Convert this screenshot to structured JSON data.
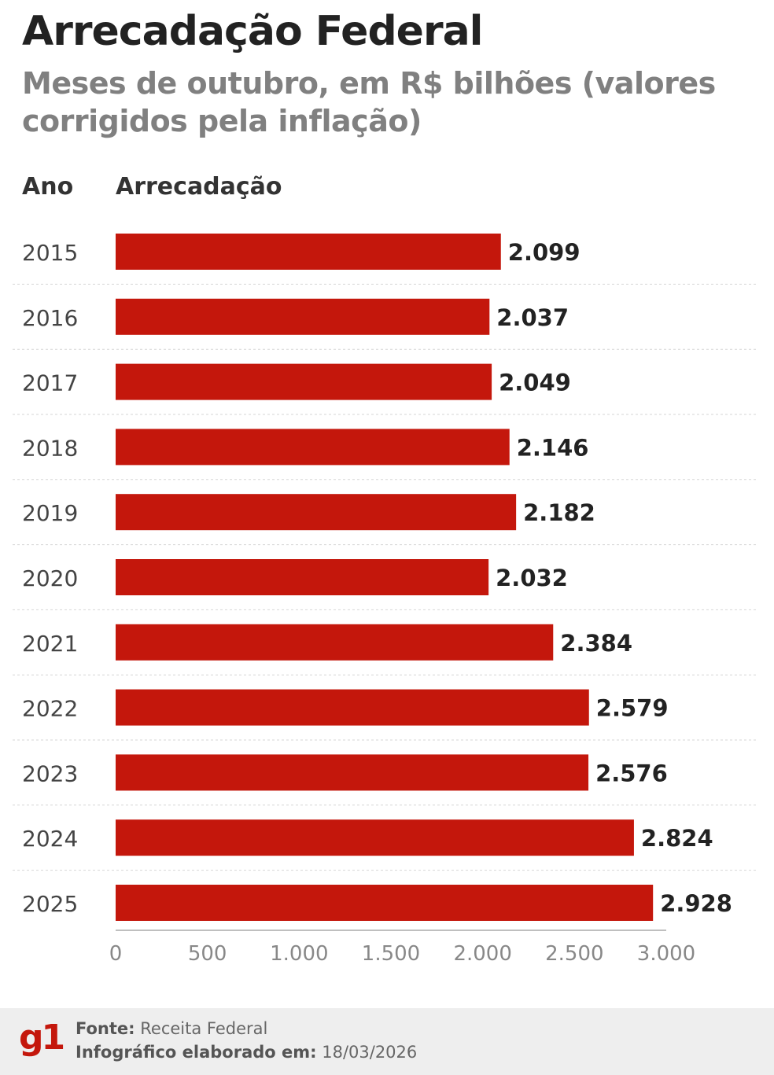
{
  "header": {
    "title": "Arrecadação Federal",
    "subtitle": "Meses de outubro, em R$ bilhões (valores corrigidos pela inflação)"
  },
  "columns": {
    "year_label": "Ano",
    "value_label": "Arrecadação"
  },
  "chart_data": {
    "type": "bar",
    "orientation": "horizontal",
    "categories": [
      "2015",
      "2016",
      "2017",
      "2018",
      "2019",
      "2020",
      "2021",
      "2022",
      "2023",
      "2024",
      "2025"
    ],
    "values": [
      2099,
      2037,
      2049,
      2146,
      2182,
      2032,
      2384,
      2579,
      2576,
      2824,
      2928
    ],
    "value_labels": [
      "2.099",
      "2.037",
      "2.049",
      "2.146",
      "2.182",
      "2.032",
      "2.384",
      "2.579",
      "2.576",
      "2.824",
      "2.928"
    ],
    "xlim": [
      0,
      3000
    ],
    "xticks": [
      0,
      500,
      1000,
      1500,
      2000,
      2500,
      3000
    ],
    "xtick_labels": [
      "0",
      "500",
      "1.000",
      "1.500",
      "2.000",
      "2.500",
      "3.000"
    ],
    "bar_color": "#c4170c",
    "grid": false
  },
  "footer": {
    "logo": "g1",
    "source_label": "Fonte:",
    "source_value": "Receita Federal",
    "date_label": "Infográfico elaborado em:",
    "date_value": "18/03/2026"
  },
  "colors": {
    "accent": "#c4170c",
    "title": "#222222",
    "subtitle": "#808080",
    "footer_bg": "#eeeeee"
  }
}
